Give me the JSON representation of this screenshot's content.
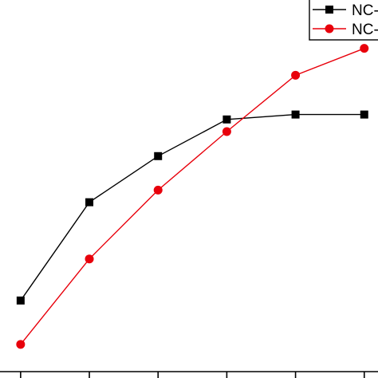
{
  "chart_data": {
    "type": "line",
    "title": "",
    "xlabel": "",
    "ylabel": "",
    "x": [
      1,
      2,
      3,
      4,
      5,
      6
    ],
    "xlim": [
      0.7,
      6.2
    ],
    "ylim": [
      0,
      100
    ],
    "grid": false,
    "legend_position": "top-right",
    "series": [
      {
        "name": "NC-",
        "color": "#000000",
        "marker": "square",
        "values": [
          20.5,
          46.5,
          58.7,
          68.4,
          69.7,
          69.7
        ]
      },
      {
        "name": "NC-",
        "color": "#e8000b",
        "marker": "circle",
        "values": [
          8.9,
          31.5,
          49.7,
          65.2,
          80.1,
          87.2
        ]
      }
    ]
  }
}
